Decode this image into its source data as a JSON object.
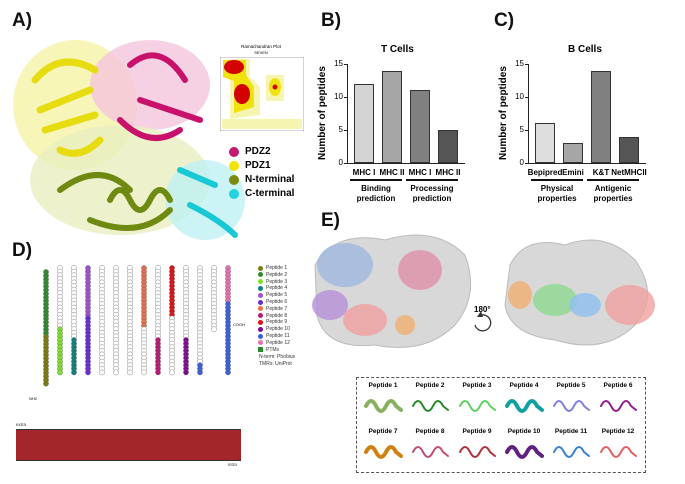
{
  "panels": {
    "a": "A)",
    "b": "B)",
    "c": "C)",
    "d": "D)",
    "e": "E)"
  },
  "panel_a": {
    "ramachandran_title": "Ramachandran Plot",
    "ramachandran_subtitle": "SEVEN",
    "legend": [
      {
        "label": "PDZ2",
        "color": "#c2186d"
      },
      {
        "label": "PDZ1",
        "color": "#f1e400"
      },
      {
        "label": "N-terminal",
        "color": "#7d8a12"
      },
      {
        "label": "C-terminal",
        "color": "#22d2dc"
      }
    ]
  },
  "chart_data": [
    {
      "type": "bar",
      "title": "T Cells",
      "ylabel": "Number of peptides",
      "ylim": [
        0,
        15
      ],
      "yticks": [
        0,
        5,
        10,
        15
      ],
      "categories": [
        "MHC I",
        "MHC II",
        "MHC I",
        "MHC II"
      ],
      "values": [
        12,
        14,
        11,
        5
      ],
      "colors": [
        "#d4d4d4",
        "#a6a6a6",
        "#808080",
        "#555555"
      ],
      "groups": [
        {
          "label": "Binding prediction",
          "line1": "Binding",
          "line2": "prediction"
        },
        {
          "label": "Processing prediction",
          "line1": "Processing",
          "line2": "prediction"
        }
      ]
    },
    {
      "type": "bar",
      "title": "B Cells",
      "ylabel": "Number of peptides",
      "ylim": [
        0,
        15
      ],
      "yticks": [
        0,
        5,
        10,
        15
      ],
      "categories": [
        "Bepipred",
        "Emini",
        "K&T",
        "NetMHCII"
      ],
      "values": [
        6,
        3,
        14,
        4
      ],
      "colors": [
        "#dedede",
        "#a6a6a6",
        "#808080",
        "#555555"
      ],
      "groups": [
        {
          "label": "Physical properties",
          "line1": "Physical",
          "line2": "properties"
        },
        {
          "label": "Antigenic properties",
          "line1": "Antigenic",
          "line2": "properties"
        }
      ]
    }
  ],
  "panel_d": {
    "legend": [
      {
        "label": "Peptide 1",
        "color": "#7a7a10"
      },
      {
        "label": "Peptide 2",
        "color": "#2f8a2f"
      },
      {
        "label": "Peptide 3",
        "color": "#7ee02a"
      },
      {
        "label": "Peptide 4",
        "color": "#0f8080"
      },
      {
        "label": "Peptide 5",
        "color": "#a050d0"
      },
      {
        "label": "Peptide 6",
        "color": "#6a2ad0"
      },
      {
        "label": "Peptide 7",
        "color": "#e8704a"
      },
      {
        "label": "Peptide 8",
        "color": "#b81a78"
      },
      {
        "label": "Peptide 9",
        "color": "#e01010"
      },
      {
        "label": "Peptide 10",
        "color": "#800a90"
      },
      {
        "label": "Peptide 11",
        "color": "#3a60d8"
      },
      {
        "label": "Peptide 12",
        "color": "#e870b0"
      },
      {
        "label": "PTMs",
        "color": "#2a8a2a"
      }
    ],
    "notes": [
      "N-term: Phobius",
      "TMRs: UniProt"
    ],
    "nterm": "NH2",
    "cterm": "COOH",
    "extra": "extra",
    "intra": "intra",
    "membrane_color": "#a3262a"
  },
  "panel_e": {
    "rotation": "180°",
    "peptides": [
      "Peptide 1",
      "Peptide 2",
      "Peptide 3",
      "Peptide 4",
      "Peptide 5",
      "Peptide 6",
      "Peptide 7",
      "Peptide 8",
      "Peptide 9",
      "Peptide 10",
      "Peptide 11",
      "Peptide 12"
    ],
    "peptide_colors": [
      "#88b060",
      "#2a8a2a",
      "#60d060",
      "#10a0a0",
      "#8080e0",
      "#902090",
      "#d08010",
      "#c05070",
      "#b03040",
      "#602080",
      "#3a80d0",
      "#e06060"
    ]
  }
}
